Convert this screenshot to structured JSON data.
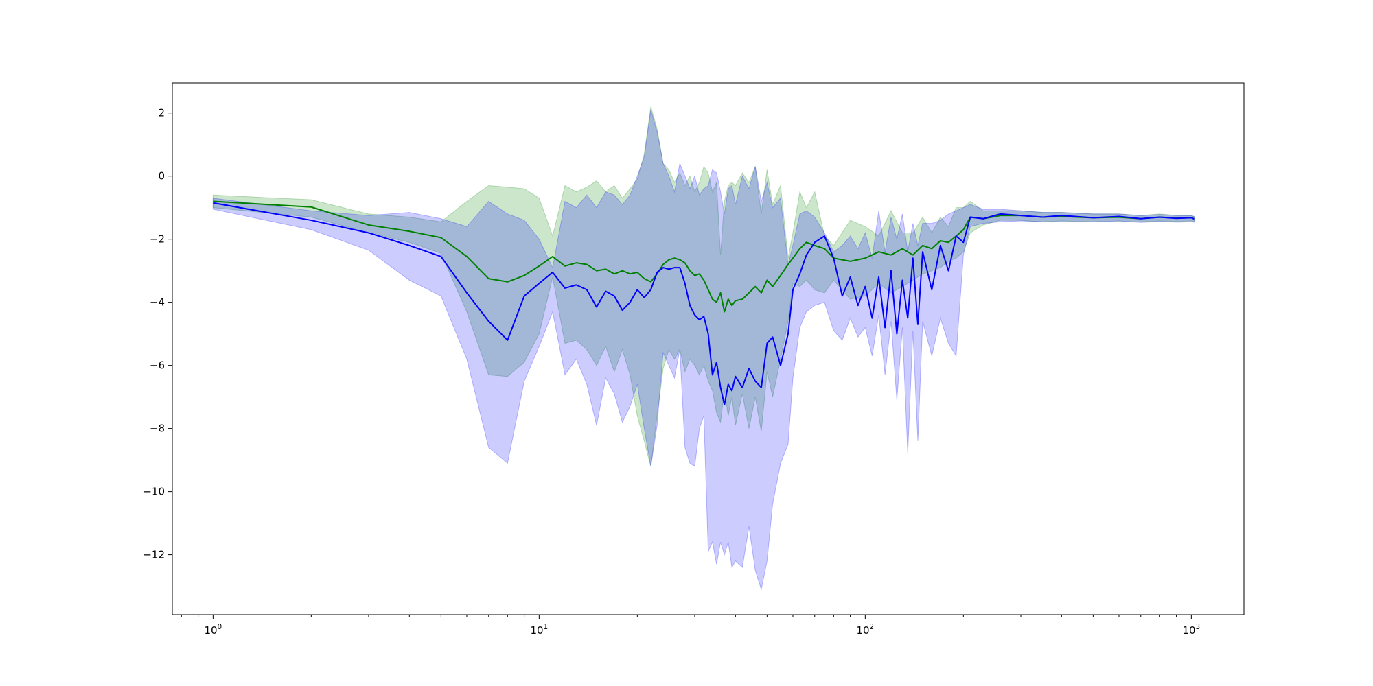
{
  "chart_data": {
    "type": "line",
    "title": "",
    "xlabel": "",
    "ylabel": "",
    "xscale": "log",
    "xlim": [
      0.75,
      1450
    ],
    "ylim": [
      -13.9,
      2.95
    ],
    "grid": false,
    "legend": "none",
    "x_ticks": [
      {
        "base": "10",
        "exp": "0",
        "value": 1
      },
      {
        "base": "10",
        "exp": "1",
        "value": 10
      },
      {
        "base": "10",
        "exp": "2",
        "value": 100
      },
      {
        "base": "10",
        "exp": "3",
        "value": 1000
      }
    ],
    "y_ticks": [
      {
        "label": "2",
        "value": 2
      },
      {
        "label": "0",
        "value": 0
      },
      {
        "label": "−2",
        "value": -2
      },
      {
        "label": "−4",
        "value": -4
      },
      {
        "label": "−6",
        "value": -6
      },
      {
        "label": "−8",
        "value": -8
      },
      {
        "label": "−10",
        "value": -10
      },
      {
        "label": "−12",
        "value": -12
      }
    ],
    "series": [
      {
        "color": "#008000",
        "band_color": "#008000",
        "band_opacity": 0.2,
        "x": [
          1,
          2,
          3,
          4,
          5,
          6,
          7,
          8,
          9,
          10,
          11,
          12,
          13,
          14,
          15,
          16,
          17,
          18,
          19,
          20,
          21,
          22,
          23,
          24,
          25,
          26,
          27,
          28,
          29,
          30,
          31,
          32,
          33,
          34,
          35,
          36,
          37,
          38,
          39,
          40,
          42,
          44,
          46,
          48,
          50,
          52,
          55,
          58,
          60,
          63,
          66,
          70,
          75,
          80,
          90,
          100,
          110,
          120,
          130,
          140,
          150,
          160,
          170,
          180,
          190,
          200,
          210,
          230,
          260,
          300,
          350,
          400,
          500,
          600,
          700,
          800,
          900,
          1000,
          1020
        ],
        "y": [
          -0.8,
          -0.98,
          -1.55,
          -1.75,
          -1.95,
          -2.55,
          -3.25,
          -3.35,
          -3.15,
          -2.85,
          -2.55,
          -2.85,
          -2.75,
          -2.8,
          -3.0,
          -2.95,
          -3.1,
          -3.0,
          -3.1,
          -3.05,
          -3.25,
          -3.35,
          -3.1,
          -2.8,
          -2.65,
          -2.6,
          -2.65,
          -2.75,
          -3.0,
          -3.15,
          -3.1,
          -3.3,
          -3.6,
          -3.9,
          -4.0,
          -3.7,
          -4.3,
          -3.9,
          -4.1,
          -3.95,
          -3.9,
          -3.7,
          -3.5,
          -3.7,
          -3.3,
          -3.5,
          -3.15,
          -2.8,
          -2.6,
          -2.3,
          -2.1,
          -2.2,
          -2.3,
          -2.6,
          -2.7,
          -2.6,
          -2.4,
          -2.5,
          -2.3,
          -2.5,
          -2.2,
          -2.3,
          -2.05,
          -2.1,
          -1.9,
          -1.7,
          -1.3,
          -1.35,
          -1.25,
          -1.25,
          -1.3,
          -1.28,
          -1.32,
          -1.3,
          -1.35,
          -1.3,
          -1.33,
          -1.32,
          -1.35
        ],
        "upper": [
          -0.6,
          -0.75,
          -1.2,
          -1.3,
          -1.45,
          -0.8,
          -0.3,
          -0.35,
          -0.4,
          -0.7,
          -1.9,
          -0.3,
          -0.5,
          -0.35,
          -0.15,
          -0.5,
          -0.3,
          -0.7,
          -0.4,
          -0.1,
          0.7,
          2.2,
          1.5,
          0.4,
          0.2,
          -0.2,
          0.1,
          -0.3,
          0.0,
          -0.5,
          -0.2,
          0.3,
          0.1,
          -0.5,
          -0.2,
          -2.5,
          -0.8,
          -0.3,
          -0.2,
          -0.3,
          0.1,
          -0.2,
          0.3,
          -1.2,
          0.2,
          -0.9,
          -0.3,
          -2.6,
          -1.8,
          -0.5,
          -1.0,
          -0.5,
          -1.9,
          -2.2,
          -1.4,
          -1.6,
          -1.9,
          -1.1,
          -1.8,
          -1.8,
          -1.3,
          -1.8,
          -1.3,
          -1.6,
          -1.0,
          -1.0,
          -0.8,
          -1.1,
          -1.1,
          -1.1,
          -1.15,
          -1.15,
          -1.2,
          -1.2,
          -1.25,
          -1.2,
          -1.25,
          -1.25,
          -1.28
        ],
        "lower": [
          -1.0,
          -1.3,
          -1.8,
          -2.1,
          -2.45,
          -4.3,
          -6.3,
          -6.35,
          -5.9,
          -5.0,
          -3.2,
          -5.3,
          -5.2,
          -5.5,
          -6.0,
          -5.4,
          -6.2,
          -5.5,
          -6.3,
          -7.6,
          -8.4,
          -9.2,
          -7.6,
          -6.1,
          -5.5,
          -5.8,
          -5.5,
          -6.2,
          -5.8,
          -6.0,
          -6.3,
          -6.0,
          -6.5,
          -6.8,
          -7.5,
          -7.8,
          -6.8,
          -7.6,
          -7.0,
          -7.9,
          -6.9,
          -8.0,
          -7.0,
          -8.1,
          -6.2,
          -7.0,
          -5.8,
          -4.6,
          -3.4,
          -3.5,
          -3.3,
          -3.6,
          -3.7,
          -3.3,
          -3.9,
          -3.8,
          -3.4,
          -3.7,
          -3.5,
          -3.3,
          -3.1,
          -3.0,
          -2.9,
          -2.7,
          -2.6,
          -2.4,
          -1.8,
          -1.55,
          -1.4,
          -1.4,
          -1.45,
          -1.42,
          -1.45,
          -1.45,
          -1.45,
          -1.42,
          -1.44,
          -1.42,
          -1.45
        ]
      },
      {
        "color": "#0000ff",
        "band_color": "#0000ff",
        "band_opacity": 0.2,
        "x": [
          1,
          2,
          3,
          4,
          5,
          6,
          7,
          8,
          9,
          10,
          11,
          12,
          13,
          14,
          15,
          16,
          17,
          18,
          19,
          20,
          21,
          22,
          23,
          24,
          25,
          26,
          27,
          28,
          29,
          30,
          31,
          32,
          33,
          34,
          35,
          36,
          37,
          38,
          39,
          40,
          42,
          44,
          46,
          48,
          50,
          52,
          55,
          58,
          60,
          63,
          66,
          70,
          75,
          80,
          85,
          90,
          95,
          100,
          105,
          110,
          115,
          120,
          125,
          130,
          135,
          140,
          145,
          150,
          160,
          170,
          180,
          190,
          200,
          210,
          230,
          260,
          300,
          350,
          400,
          500,
          600,
          700,
          800,
          900,
          1000,
          1020
        ],
        "y": [
          -0.85,
          -1.4,
          -1.8,
          -2.2,
          -2.55,
          -3.7,
          -4.6,
          -5.2,
          -3.8,
          -3.4,
          -3.05,
          -3.55,
          -3.45,
          -3.6,
          -4.15,
          -3.65,
          -3.8,
          -4.25,
          -4.0,
          -3.6,
          -3.85,
          -3.6,
          -3.05,
          -2.9,
          -2.95,
          -2.9,
          -2.9,
          -3.4,
          -4.1,
          -4.4,
          -4.55,
          -4.45,
          -5.0,
          -6.3,
          -5.9,
          -6.7,
          -7.25,
          -6.6,
          -6.8,
          -6.35,
          -6.7,
          -6.1,
          -6.5,
          -6.7,
          -5.3,
          -5.1,
          -6.0,
          -5.0,
          -3.6,
          -3.1,
          -2.5,
          -2.1,
          -1.9,
          -2.6,
          -3.8,
          -3.2,
          -4.1,
          -3.5,
          -4.5,
          -3.2,
          -4.8,
          -3.0,
          -5.0,
          -3.3,
          -4.5,
          -2.6,
          -4.7,
          -2.4,
          -3.6,
          -2.2,
          -3.0,
          -1.9,
          -2.1,
          -1.3,
          -1.35,
          -1.2,
          -1.25,
          -1.3,
          -1.25,
          -1.32,
          -1.28,
          -1.35,
          -1.3,
          -1.34,
          -1.32,
          -1.36
        ],
        "upper": [
          -0.7,
          -1.1,
          -1.25,
          -1.15,
          -1.35,
          -1.6,
          -0.8,
          -1.2,
          -1.4,
          -2.0,
          -2.9,
          -0.8,
          -1.0,
          -0.6,
          -1.0,
          -0.5,
          -0.6,
          -0.9,
          -0.6,
          0.0,
          0.6,
          2.1,
          1.4,
          0.4,
          0.0,
          -0.5,
          0.4,
          0.0,
          -0.4,
          0.0,
          -0.6,
          -0.4,
          -0.3,
          0.2,
          0.1,
          -0.5,
          -1.2,
          -0.4,
          -0.3,
          -0.9,
          0.0,
          -0.4,
          0.3,
          -0.8,
          -0.2,
          -1.0,
          -0.7,
          -2.8,
          -2.2,
          -1.2,
          -1.1,
          -1.3,
          -1.8,
          -2.4,
          -2.2,
          -1.9,
          -2.3,
          -1.8,
          -2.6,
          -1.1,
          -2.4,
          -1.3,
          -2.0,
          -1.2,
          -2.4,
          -1.5,
          -2.2,
          -1.5,
          -1.5,
          -1.4,
          -1.2,
          -1.1,
          -1.0,
          -0.9,
          -1.05,
          -1.05,
          -1.1,
          -1.15,
          -1.15,
          -1.2,
          -1.2,
          -1.25,
          -1.22,
          -1.24,
          -1.25,
          -1.28
        ],
        "lower": [
          -1.05,
          -1.7,
          -2.35,
          -3.3,
          -3.8,
          -5.8,
          -8.6,
          -9.1,
          -6.5,
          -5.4,
          -4.3,
          -6.3,
          -5.8,
          -6.6,
          -7.9,
          -6.4,
          -6.9,
          -7.8,
          -7.3,
          -6.6,
          -8.0,
          -9.2,
          -7.9,
          -5.6,
          -6.0,
          -6.4,
          -5.5,
          -8.6,
          -9.1,
          -9.2,
          -8.0,
          -7.6,
          -11.9,
          -11.6,
          -12.3,
          -11.6,
          -12.0,
          -11.6,
          -12.4,
          -12.2,
          -12.4,
          -11.1,
          -12.5,
          -13.1,
          -12.2,
          -10.4,
          -9.1,
          -8.5,
          -6.4,
          -4.8,
          -4.3,
          -4.1,
          -4.0,
          -4.9,
          -5.2,
          -4.5,
          -5.1,
          -4.8,
          -5.7,
          -4.4,
          -6.3,
          -4.6,
          -7.1,
          -4.8,
          -8.8,
          -4.9,
          -8.4,
          -4.6,
          -5.7,
          -4.5,
          -5.3,
          -5.7,
          -2.5,
          -1.6,
          -1.5,
          -1.45,
          -1.42,
          -1.45,
          -1.45,
          -1.45,
          -1.42,
          -1.47,
          -1.44,
          -1.46,
          -1.45,
          -1.46
        ]
      }
    ]
  }
}
